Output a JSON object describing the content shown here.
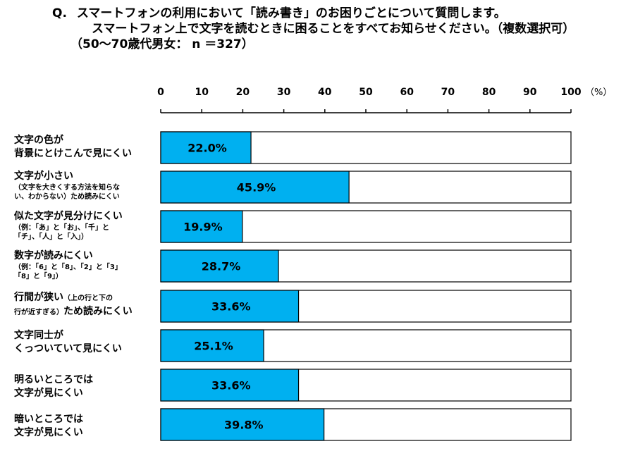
{
  "question": {
    "marker": "Q.",
    "line1": "スマートフォンの利用において「読み書き」のお困りごとについて質問します。",
    "line2": "スマートフォン上で文字を読むときに困ることをすべてお知らせください。（複数選択可）",
    "line3": "（50～70歳代男女： n ＝327）"
  },
  "chart_data": {
    "type": "bar",
    "orientation": "horizontal",
    "xlim": [
      0,
      100
    ],
    "ticks": [
      0,
      10,
      20,
      30,
      40,
      50,
      60,
      70,
      80,
      90,
      100
    ],
    "unit": "（%）",
    "bar_color": "#00B0F0",
    "categories": [
      {
        "main": "文字の色が",
        "main2": "背景にとけこんで見にくい"
      },
      {
        "main": "文字が小さい",
        "sub1": "（文字を大きくする方法を知らな",
        "sub2": "い、わからない）ため読みにくい"
      },
      {
        "main": "似た文字が見分けにくい",
        "sub1": "（例：「あ」と「お」、「千」と",
        "sub2": "「チ」、「人」と「入」）"
      },
      {
        "main": "数字が読みにくい",
        "sub1": "（例：「6」と「8」、「2」と「3」",
        "sub2": "「8」と「9」）"
      },
      {
        "main": "行間が狭い",
        "inline_sub": "（上の行と下の",
        "sub1": "行が近すぎる）",
        "tail": "ため読みにくい"
      },
      {
        "main": "文字同士が",
        "main2": "くっついていて見にくい"
      },
      {
        "main": "明るいところでは",
        "main2": "文字が見にくい"
      },
      {
        "main": "暗いところでは",
        "main2": "文字が見にくい"
      }
    ],
    "values": [
      22.0,
      45.9,
      19.9,
      28.7,
      33.6,
      25.1,
      33.6,
      39.8
    ],
    "value_labels": [
      "22.0%",
      "45.9%",
      "19.9%",
      "28.7%",
      "33.6%",
      "25.1%",
      "33.6%",
      "39.8%"
    ]
  }
}
